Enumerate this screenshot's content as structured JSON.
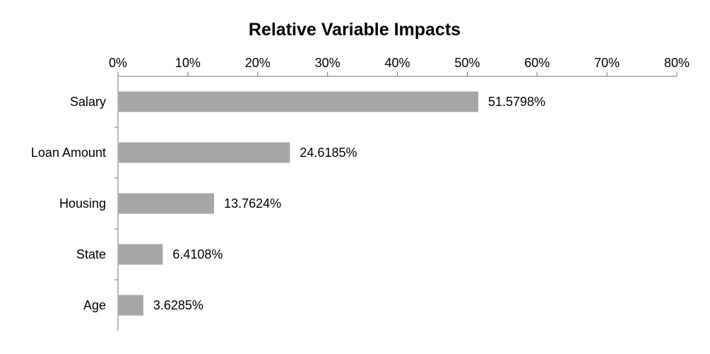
{
  "chart_data": {
    "type": "bar",
    "orientation": "horizontal",
    "title": "Relative Variable Impacts",
    "xlabel": "",
    "ylabel": "",
    "categories": [
      "Salary",
      "Loan Amount",
      "Housing",
      "State",
      "Age"
    ],
    "values": [
      51.5798,
      24.6185,
      13.7624,
      6.4108,
      3.6285
    ],
    "value_labels": [
      "51.5798%",
      "24.6185%",
      "13.7624%",
      "6.4108%",
      "3.6285%"
    ],
    "xlim": [
      0,
      80
    ],
    "x_ticks": [
      0,
      10,
      20,
      30,
      40,
      50,
      60,
      70,
      80
    ],
    "x_tick_labels": [
      "0%",
      "10%",
      "20%",
      "30%",
      "40%",
      "50%",
      "60%",
      "70%",
      "80%"
    ],
    "x_axis_position": "top",
    "grid": false,
    "legend": "none",
    "bar_color": "#a6a6a6",
    "axis_color": "#8c8c8c"
  }
}
